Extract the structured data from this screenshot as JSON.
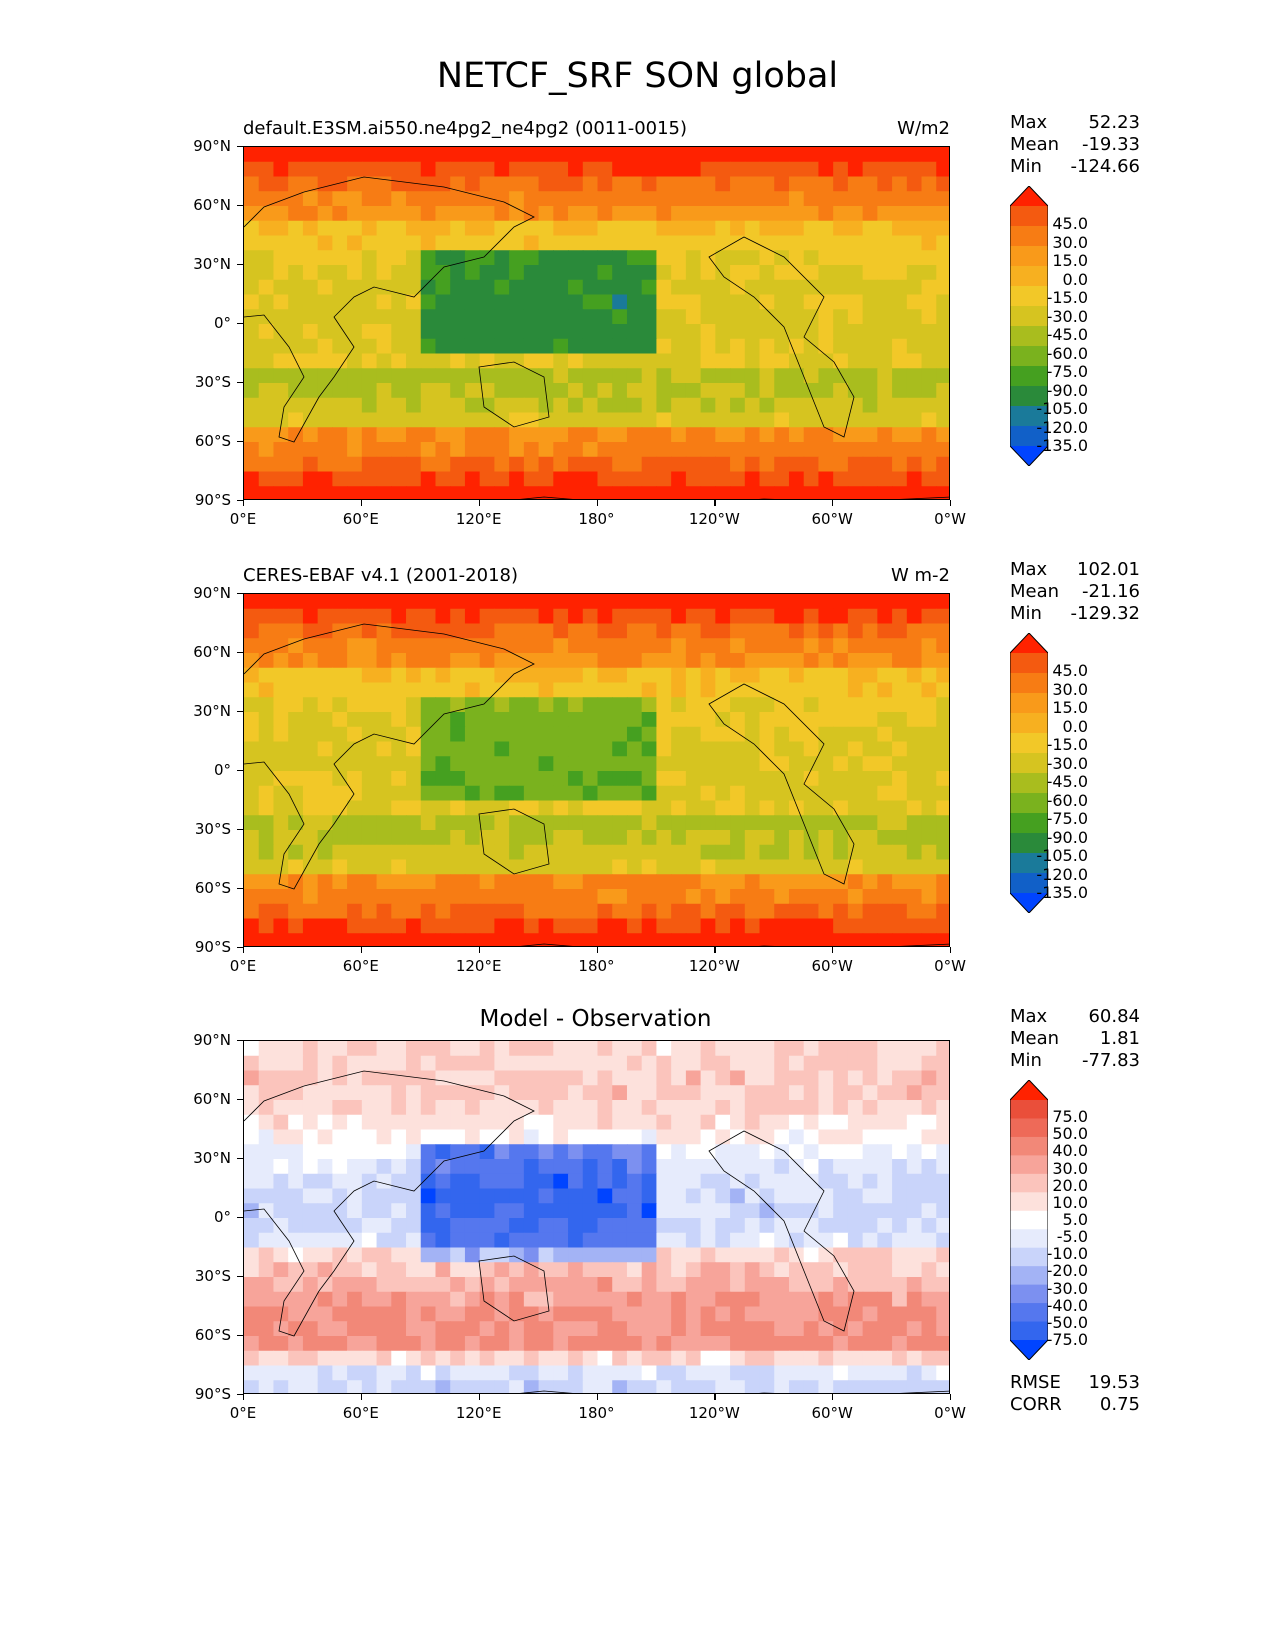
{
  "title": "NETCF_SRF SON global",
  "panels": [
    {
      "id": "model",
      "left_title": "default.E3SM.ai550.ne4pg2_ne4pg2 (0011-0015)",
      "right_title": "W/m2",
      "center_title": "",
      "stats": {
        "max_label": "Max",
        "max": "52.23",
        "mean_label": "Mean",
        "mean": "-19.33",
        "min_label": "Min",
        "min": "-124.66"
      },
      "colorbar_labels": [
        "45.0",
        "30.0",
        "15.0",
        "0.0",
        "-15.0",
        "-30.0",
        "-45.0",
        "-60.0",
        "-75.0",
        "-90.0",
        "-105.0",
        "-120.0",
        "-135.0"
      ]
    },
    {
      "id": "obs",
      "left_title": "CERES-EBAF v4.1 (2001-2018)",
      "right_title": "W m-2",
      "center_title": "",
      "stats": {
        "max_label": "Max",
        "max": "102.01",
        "mean_label": "Mean",
        "mean": "-21.16",
        "min_label": "Min",
        "min": "-129.32"
      },
      "colorbar_labels": [
        "45.0",
        "30.0",
        "15.0",
        "0.0",
        "-15.0",
        "-30.0",
        "-45.0",
        "-60.0",
        "-75.0",
        "-90.0",
        "-105.0",
        "-120.0",
        "-135.0"
      ]
    },
    {
      "id": "diff",
      "left_title": "",
      "right_title": "",
      "center_title": "Model - Observation",
      "stats": {
        "max_label": "Max",
        "max": "60.84",
        "mean_label": "Mean",
        "mean": "1.81",
        "min_label": "Min",
        "min": "-77.83"
      },
      "colorbar_labels": [
        "75.0",
        "50.0",
        "40.0",
        "30.0",
        "20.0",
        "10.0",
        "5.0",
        "-5.0",
        "-10.0",
        "-20.0",
        "-30.0",
        "-40.0",
        "-50.0",
        "-75.0"
      ],
      "extra": {
        "rmse_label": "RMSE",
        "rmse": "19.53",
        "corr_label": "CORR",
        "corr": "0.75"
      }
    }
  ],
  "lat_ticks": [
    "90°N",
    "60°N",
    "30°N",
    "0°",
    "30°S",
    "60°S",
    "90°S"
  ],
  "lon_ticks": [
    "0°E",
    "60°E",
    "120°E",
    "180°",
    "120°W",
    "60°W",
    "0°W"
  ],
  "colors": {
    "main_cmap": [
      "#0044ff",
      "#1160c8",
      "#1a7a9a",
      "#2a8a3a",
      "#45a020",
      "#7ab21e",
      "#a9bd1e",
      "#d6c420",
      "#f2c828",
      "#f7b020",
      "#f99a1a",
      "#f77c14",
      "#f45a10",
      "#ff2200"
    ],
    "diff_cmap": [
      "#0044ff",
      "#3366ee",
      "#5577ee",
      "#7c90f0",
      "#a3b3f5",
      "#c9d4fa",
      "#e6ebfc",
      "#ffffff",
      "#fde1dc",
      "#fbc4bc",
      "#f7a49a",
      "#f28878",
      "#ee6a58",
      "#ea4f3a",
      "#ff2200"
    ]
  }
}
